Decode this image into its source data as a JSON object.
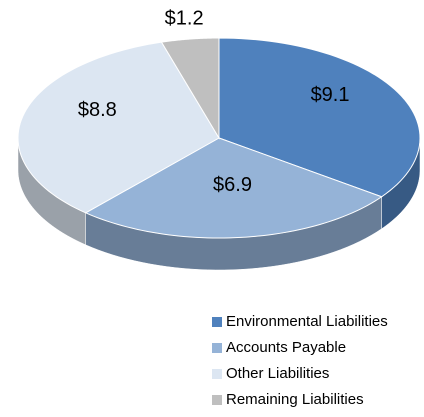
{
  "chart_data": {
    "type": "pie",
    "categories": [
      "Environmental Liabilities",
      "Accounts Payable",
      "Other Liabilities",
      "Remaining Liabilities"
    ],
    "values": [
      9.1,
      6.9,
      8.8,
      1.2
    ],
    "value_labels": [
      "$9.1",
      "$6.9",
      "$8.8",
      "$1.2"
    ],
    "colors": [
      "#4f81bd",
      "#95b3d7",
      "#dce6f2",
      "#bfbfbf"
    ],
    "legend": "bottom"
  }
}
